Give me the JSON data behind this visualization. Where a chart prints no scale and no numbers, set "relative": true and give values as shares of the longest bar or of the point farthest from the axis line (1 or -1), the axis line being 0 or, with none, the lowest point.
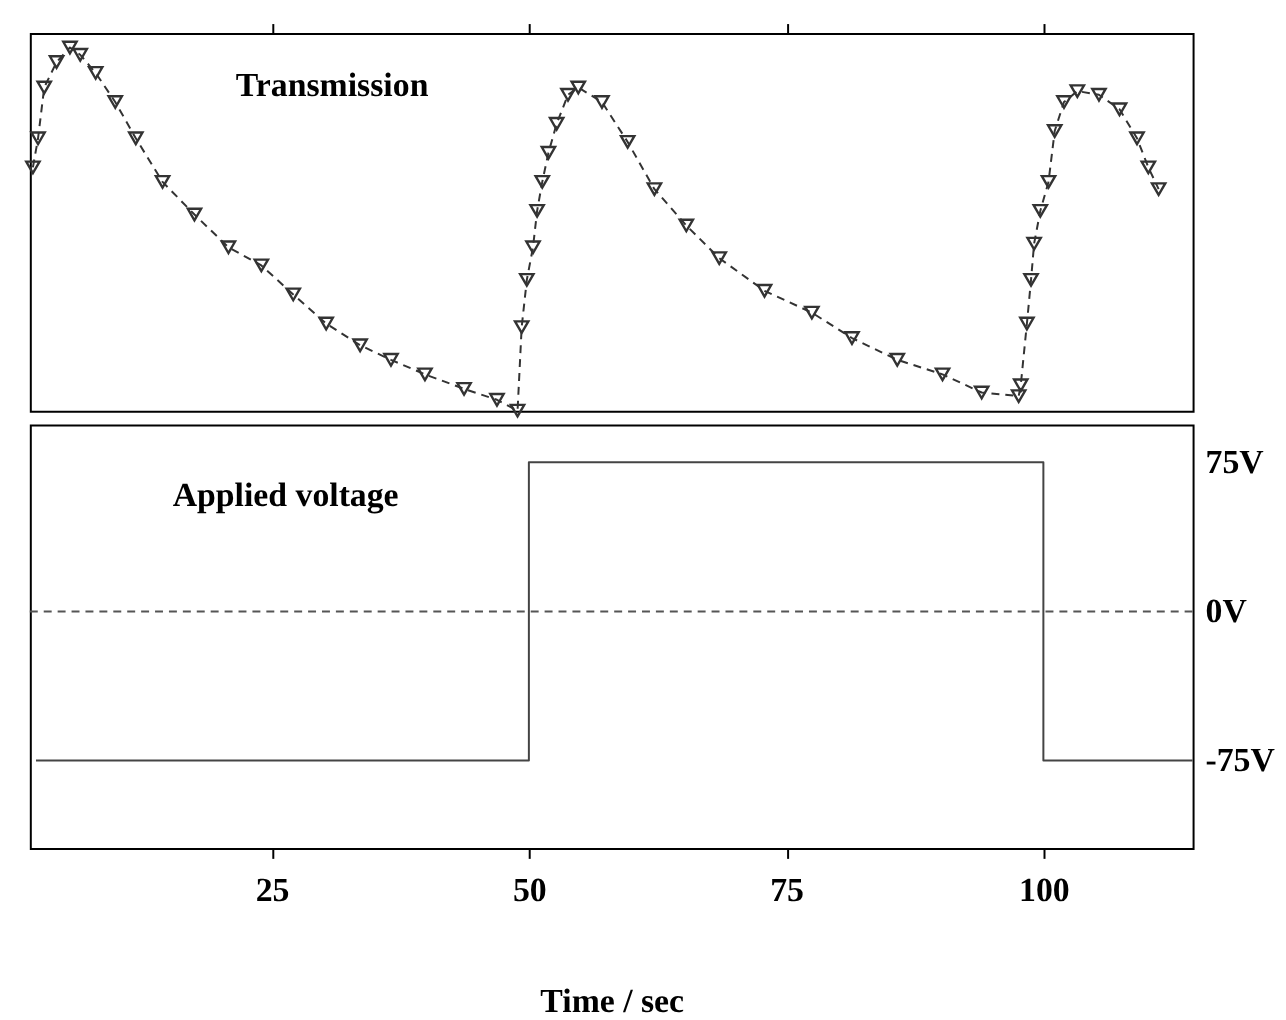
{
  "chart_data": [
    {
      "type": "line",
      "relative": true,
      "xlim": [
        1.5,
        114.5
      ],
      "xticks": [
        25,
        50,
        75,
        100
      ],
      "tick_labels": false,
      "marker": "triangle",
      "line_style": "dashed",
      "annotations": [
        "Transmission"
      ],
      "series": [
        {
          "color": "#333333",
          "x": [
            1.8,
            2.3,
            2.9,
            4.1,
            5.4,
            6.4,
            7.9,
            9.8,
            11.8,
            14.4,
            17.5,
            20.8,
            24.0,
            27.1,
            30.3,
            33.6,
            36.6,
            39.9,
            43.7,
            46.9,
            48.9,
            49.3,
            49.8,
            50.4,
            50.8,
            51.3,
            51.9,
            52.7,
            53.8,
            54.8,
            57.1,
            59.6,
            62.2,
            65.3,
            68.5,
            72.9,
            77.5,
            81.4,
            85.8,
            90.2,
            94.0,
            97.6,
            97.8,
            98.4,
            98.8,
            99.1,
            99.7,
            100.5,
            101.1,
            102.0,
            103.3,
            105.4,
            107.4,
            109.1,
            110.2,
            111.2
          ],
          "values": [
            0.67,
            0.75,
            0.89,
            0.96,
            1.0,
            0.98,
            0.93,
            0.85,
            0.75,
            0.63,
            0.54,
            0.45,
            0.4,
            0.32,
            0.24,
            0.18,
            0.14,
            0.1,
            0.06,
            0.03,
            0.0,
            0.23,
            0.36,
            0.45,
            0.55,
            0.63,
            0.71,
            0.79,
            0.87,
            0.89,
            0.85,
            0.74,
            0.61,
            0.51,
            0.42,
            0.33,
            0.27,
            0.2,
            0.14,
            0.1,
            0.05,
            0.04,
            0.07,
            0.24,
            0.36,
            0.46,
            0.55,
            0.63,
            0.77,
            0.85,
            0.88,
            0.87,
            0.83,
            0.75,
            0.67,
            0.61
          ]
        }
      ]
    },
    {
      "type": "step",
      "xlim": [
        1.5,
        114.5
      ],
      "ylim": [
        -119,
        94
      ],
      "xticks": [
        25,
        50,
        75,
        100
      ],
      "yticks": [
        {
          "value": 75,
          "label": "75V"
        },
        {
          "value": 0,
          "label": "0V"
        },
        {
          "value": -75,
          "label": "-75V"
        }
      ],
      "xlabel": "Time / sec",
      "annotations": [
        "Applied voltage"
      ],
      "ref_lines": [
        {
          "axis": "y",
          "value": 0,
          "line_style": "dashed",
          "color": "#555555"
        }
      ],
      "series": [
        {
          "color": "#444444",
          "x": [
            2.1,
            50,
            100,
            114.5
          ],
          "values": [
            -75,
            75,
            -75,
            -75
          ]
        }
      ]
    }
  ]
}
